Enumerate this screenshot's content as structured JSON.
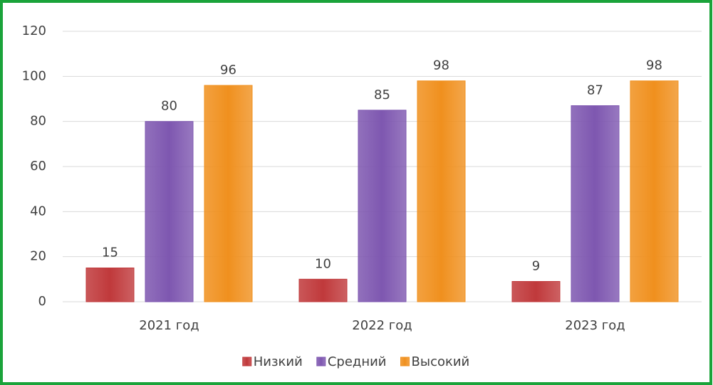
{
  "chart_data": {
    "type": "bar",
    "categories": [
      "2021 год",
      "2022 год",
      "2023 год"
    ],
    "series": [
      {
        "name": "Низкий",
        "color": "#c0393b",
        "values": [
          15,
          10,
          9
        ]
      },
      {
        "name": "Средний",
        "color": "#7e57b0",
        "values": [
          80,
          85,
          87
        ]
      },
      {
        "name": "Высокий",
        "color": "#f0901e",
        "values": [
          96,
          98,
          98
        ]
      }
    ],
    "ylim": [
      0,
      120
    ],
    "yticks": [
      0,
      20,
      40,
      60,
      80,
      100,
      120
    ],
    "grid": true,
    "legend": "bottom"
  }
}
